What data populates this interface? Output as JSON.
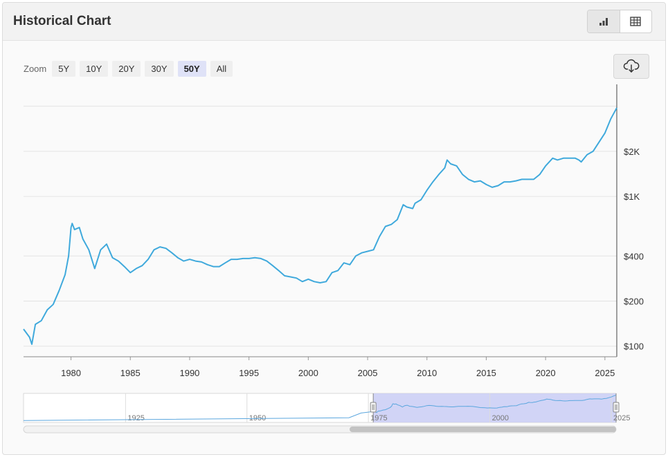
{
  "header": {
    "title": "Historical Chart",
    "chart_view_icon": "bar-chart-icon",
    "table_view_icon": "table-icon"
  },
  "zoom": {
    "label": "Zoom",
    "buttons": [
      "5Y",
      "10Y",
      "20Y",
      "30Y",
      "50Y",
      "All"
    ],
    "active": "50Y"
  },
  "download_icon": "cloud-download-icon",
  "colors": {
    "line": "#3fa9dc",
    "navigator_fill": "#c9cdf4",
    "navigator_line": "#5aa6de"
  },
  "chart_data": {
    "type": "line",
    "title": "",
    "xlabel": "",
    "ylabel": "",
    "y_scale": "log",
    "y_ticks": [
      {
        "value": 100,
        "label": "$100"
      },
      {
        "value": 200,
        "label": "$200"
      },
      {
        "value": 400,
        "label": "$400"
      },
      {
        "value": 1000,
        "label": "$1K"
      },
      {
        "value": 2000,
        "label": "$2K"
      }
    ],
    "x_ticks": [
      "1980",
      "1985",
      "1990",
      "1995",
      "2000",
      "2005",
      "2010",
      "2015",
      "2020",
      "2025"
    ],
    "xlim": [
      1976.0,
      2026.0
    ],
    "ylim": [
      85,
      5600
    ],
    "grid": true,
    "series": [
      {
        "name": "",
        "x": [
          1976.0,
          1976.5,
          1976.7,
          1977.0,
          1977.5,
          1978.0,
          1978.5,
          1979.0,
          1979.5,
          1979.8,
          1980.0,
          1980.1,
          1980.3,
          1980.7,
          1981.0,
          1981.5,
          1982.0,
          1982.5,
          1983.0,
          1983.5,
          1984.0,
          1984.5,
          1985.0,
          1985.5,
          1986.0,
          1986.5,
          1987.0,
          1987.5,
          1988.0,
          1988.5,
          1989.0,
          1989.5,
          1990.0,
          1990.5,
          1991.0,
          1991.5,
          1992.0,
          1992.5,
          1993.0,
          1993.5,
          1994.0,
          1994.5,
          1995.0,
          1995.5,
          1996.0,
          1996.5,
          1997.0,
          1997.5,
          1998.0,
          1998.5,
          1999.0,
          1999.5,
          2000.0,
          2000.5,
          2001.0,
          2001.5,
          2002.0,
          2002.5,
          2003.0,
          2003.5,
          2004.0,
          2004.5,
          2005.0,
          2005.5,
          2006.0,
          2006.5,
          2007.0,
          2007.5,
          2008.0,
          2008.3,
          2008.8,
          2009.0,
          2009.5,
          2010.0,
          2010.5,
          2011.0,
          2011.5,
          2011.7,
          2012.0,
          2012.5,
          2013.0,
          2013.5,
          2014.0,
          2014.5,
          2015.0,
          2015.5,
          2016.0,
          2016.5,
          2017.0,
          2017.5,
          2018.0,
          2018.5,
          2019.0,
          2019.5,
          2020.0,
          2020.6,
          2021.0,
          2021.5,
          2022.0,
          2022.5,
          2022.8,
          2023.0,
          2023.5,
          2024.0,
          2024.5,
          2025.0,
          2025.5,
          2026.0
        ],
        "values": [
          130,
          115,
          103,
          140,
          148,
          175,
          190,
          235,
          300,
          400,
          620,
          660,
          600,
          620,
          520,
          440,
          330,
          440,
          480,
          390,
          370,
          340,
          310,
          330,
          345,
          380,
          440,
          460,
          450,
          420,
          390,
          370,
          380,
          370,
          365,
          350,
          340,
          340,
          360,
          380,
          380,
          385,
          385,
          390,
          385,
          370,
          345,
          320,
          295,
          290,
          285,
          270,
          280,
          270,
          265,
          270,
          310,
          320,
          360,
          350,
          400,
          420,
          430,
          440,
          540,
          630,
          650,
          700,
          880,
          850,
          830,
          900,
          950,
          1100,
          1250,
          1400,
          1550,
          1750,
          1650,
          1600,
          1400,
          1300,
          1250,
          1270,
          1200,
          1150,
          1180,
          1250,
          1250,
          1270,
          1300,
          1300,
          1300,
          1400,
          1600,
          1800,
          1750,
          1800,
          1800,
          1800,
          1750,
          1700,
          1900,
          2000,
          2300,
          2650,
          3300,
          3900
        ]
      }
    ],
    "navigator": {
      "x_labels": [
        "1925",
        "1950",
        "1975",
        "2000",
        "2025"
      ]
    }
  }
}
